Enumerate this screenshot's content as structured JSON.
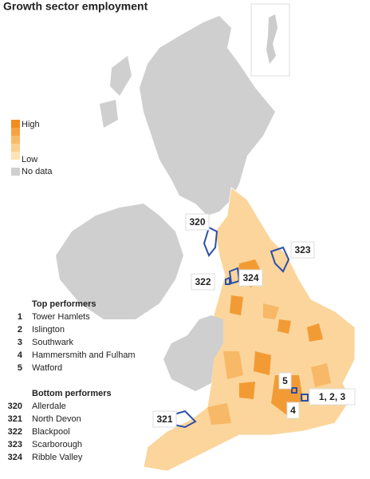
{
  "title": "Growth sector employment",
  "legend": {
    "high": "High",
    "low": "Low",
    "no_data": "No data"
  },
  "top_performers": {
    "heading": "Top performers",
    "items": [
      {
        "rank": 1,
        "name": "Tower Hamlets"
      },
      {
        "rank": 2,
        "name": "Islington"
      },
      {
        "rank": 3,
        "name": "Southwark"
      },
      {
        "rank": 4,
        "name": "Hammersmith and Fulham"
      },
      {
        "rank": 5,
        "name": "Watford"
      }
    ]
  },
  "bottom_performers": {
    "heading": "Bottom performers",
    "items": [
      {
        "rank": 320,
        "name": "Allerdale"
      },
      {
        "rank": 321,
        "name": "North Devon"
      },
      {
        "rank": 322,
        "name": "Blackpool"
      },
      {
        "rank": 323,
        "name": "Scarborough"
      },
      {
        "rank": 324,
        "name": "Ribble Valley"
      }
    ]
  },
  "map_labels": [
    "320",
    "323",
    "322",
    "324",
    "5",
    "4",
    "1, 2, 3",
    "321"
  ]
}
